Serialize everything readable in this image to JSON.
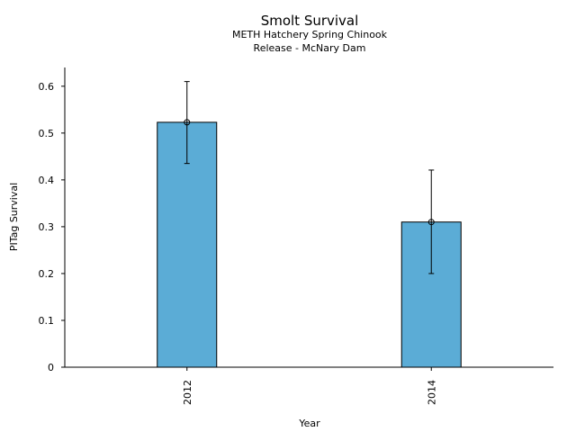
{
  "chart_data": {
    "type": "bar",
    "title": "Smolt Survival",
    "subtitle_lines": [
      "METH Hatchery Spring Chinook",
      "Release - McNary Dam"
    ],
    "xlabel": "Year",
    "ylabel": "PITag Survival",
    "categories": [
      "2012",
      "2014"
    ],
    "values": [
      0.523,
      0.31
    ],
    "error_low": [
      0.435,
      0.2
    ],
    "error_high": [
      0.61,
      0.421
    ],
    "ylim": [
      0,
      0.64
    ],
    "yticks": [
      0,
      0.1,
      0.2,
      0.3,
      0.4,
      0.5,
      0.6
    ],
    "ytick_labels": [
      "0",
      "0.1",
      "0.2",
      "0.3",
      "0.4",
      "0.5",
      "0.6"
    ],
    "grid": false,
    "bar_color": "#5bacd6"
  }
}
